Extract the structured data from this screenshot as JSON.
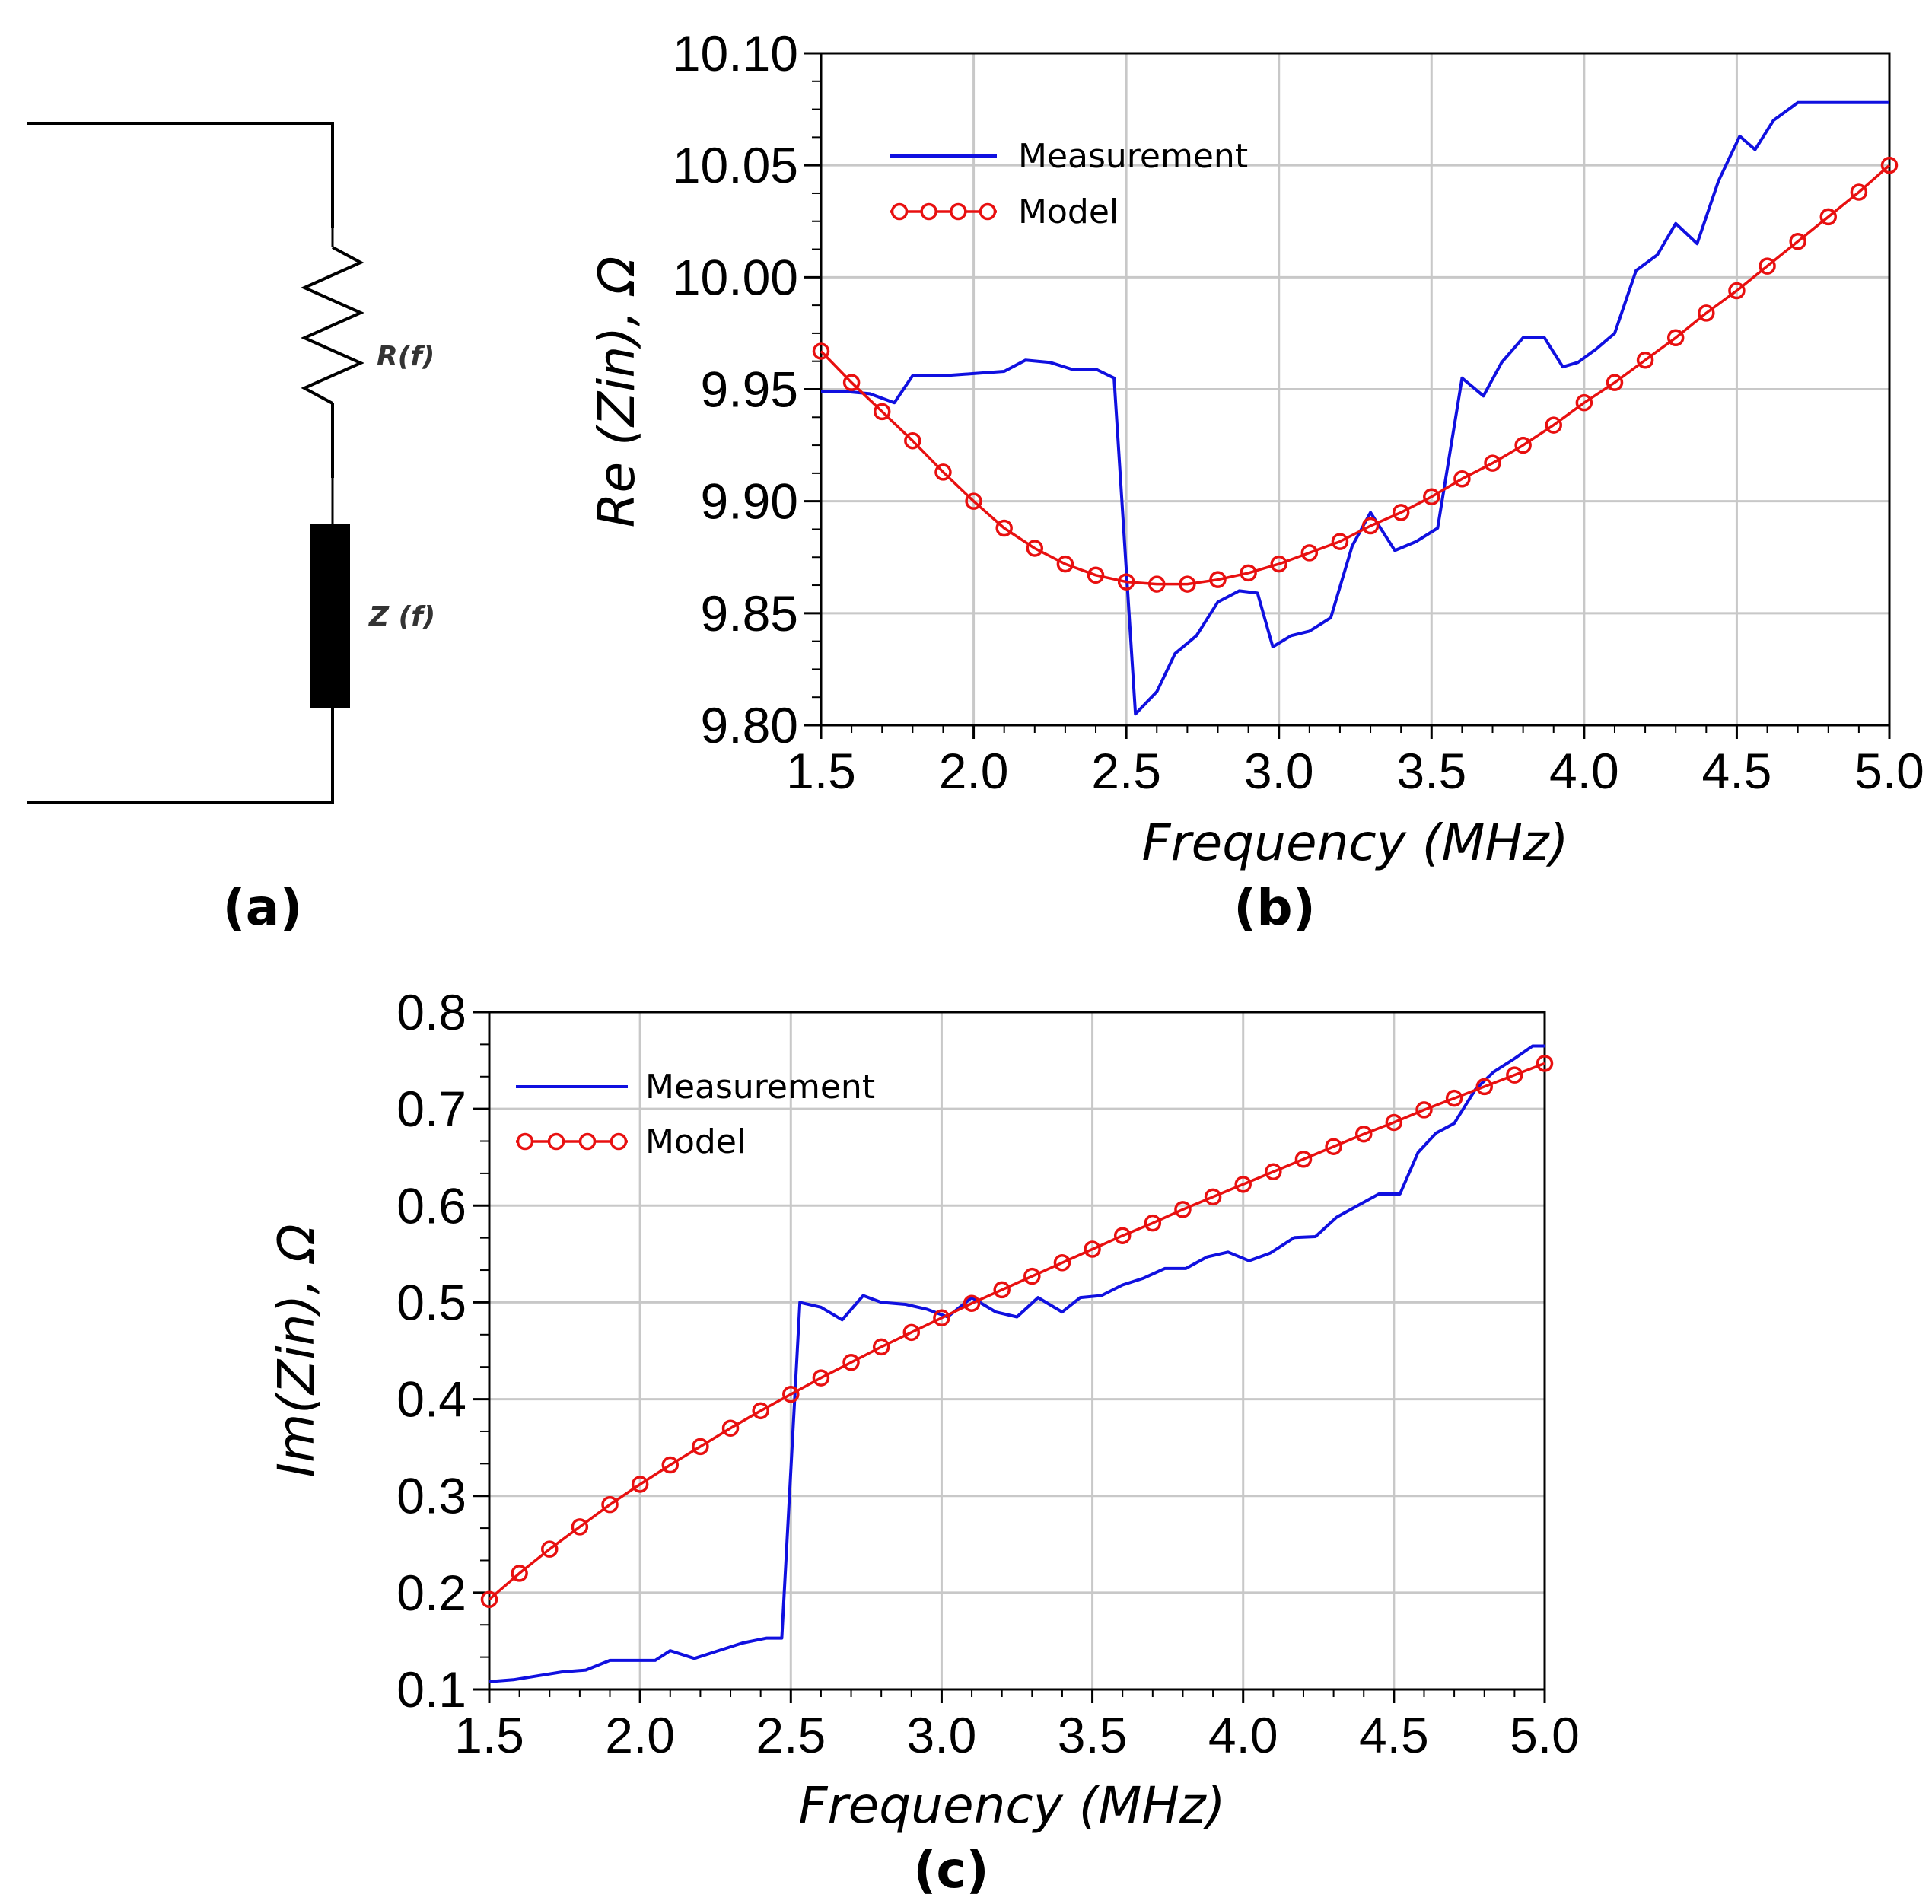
{
  "circuit": {
    "panel_label": "(a)",
    "resistor_label": "R(f)",
    "impedance_label": "Z (f)"
  },
  "colors": {
    "measurement": "#1010e0",
    "model": "#e81010"
  },
  "chart_data": [
    {
      "type": "line",
      "panel_label": "(b)",
      "xlabel": "Frequency (MHz)",
      "ylabel": "Re (Zin), Ω",
      "xlim": [
        1.5,
        5.0
      ],
      "ylim": [
        9.8,
        10.1
      ],
      "xticks": [
        "1.5",
        "2.0",
        "2.5",
        "3.0",
        "3.5",
        "4.0",
        "4.5",
        "5.0"
      ],
      "yticks": [
        "9.80",
        "9.85",
        "9.90",
        "9.95",
        "10.00",
        "10.05",
        "10.10"
      ],
      "grid": true,
      "legend_position": "top-left",
      "series": [
        {
          "name": "Measurement",
          "style": "line",
          "x": [
            1.5,
            1.58,
            1.66,
            1.74,
            1.8,
            1.9,
            2.0,
            2.1,
            2.17,
            2.25,
            2.32,
            2.4,
            2.46,
            2.53,
            2.6,
            2.66,
            2.73,
            2.8,
            2.87,
            2.93,
            2.98,
            3.04,
            3.1,
            3.17,
            3.24,
            3.3,
            3.38,
            3.45,
            3.52,
            3.6,
            3.67,
            3.73,
            3.8,
            3.87,
            3.93,
            3.98,
            4.04,
            4.1,
            4.17,
            4.24,
            4.3,
            4.37,
            4.44,
            4.51,
            4.56,
            4.62,
            4.7,
            4.77,
            4.85,
            4.93,
            5.0
          ],
          "y": [
            9.949,
            9.949,
            9.948,
            9.944,
            9.956,
            9.956,
            9.957,
            9.958,
            9.963,
            9.962,
            9.959,
            9.959,
            9.955,
            9.805,
            9.815,
            9.832,
            9.84,
            9.855,
            9.86,
            9.859,
            9.835,
            9.84,
            9.842,
            9.848,
            9.88,
            9.895,
            9.878,
            9.882,
            9.888,
            9.955,
            9.947,
            9.962,
            9.973,
            9.973,
            9.96,
            9.962,
            9.968,
            9.975,
            10.003,
            10.01,
            10.024,
            10.015,
            10.043,
            10.063,
            10.057,
            10.07,
            10.078,
            10.078,
            10.078,
            10.078,
            10.078
          ]
        },
        {
          "name": "Model",
          "style": "line-circle",
          "x": [
            1.5,
            1.6,
            1.7,
            1.8,
            1.9,
            2.0,
            2.1,
            2.2,
            2.3,
            2.4,
            2.5,
            2.6,
            2.7,
            2.8,
            2.9,
            3.0,
            3.1,
            3.2,
            3.3,
            3.4,
            3.5,
            3.6,
            3.7,
            3.8,
            3.9,
            4.0,
            4.1,
            4.2,
            4.3,
            4.4,
            4.5,
            4.6,
            4.7,
            4.8,
            4.9,
            5.0
          ],
          "y": [
            9.967,
            9.953,
            9.94,
            9.927,
            9.913,
            9.9,
            9.888,
            9.879,
            9.872,
            9.867,
            9.864,
            9.863,
            9.863,
            9.865,
            9.868,
            9.872,
            9.877,
            9.882,
            9.889,
            9.895,
            9.902,
            9.91,
            9.917,
            9.925,
            9.934,
            9.944,
            9.953,
            9.963,
            9.973,
            9.984,
            9.994,
            10.005,
            10.016,
            10.027,
            10.038,
            10.05
          ]
        }
      ]
    },
    {
      "type": "line",
      "panel_label": "(c)",
      "xlabel": "Frequency (MHz)",
      "ylabel": "Im(Zin), Ω",
      "xlim": [
        1.5,
        5.0
      ],
      "ylim": [
        0.1,
        0.8
      ],
      "xticks": [
        "1.5",
        "2.0",
        "2.5",
        "3.0",
        "3.5",
        "4.0",
        "4.5",
        "5.0"
      ],
      "yticks": [
        "0.1",
        "0.2",
        "0.3",
        "0.4",
        "0.5",
        "0.6",
        "0.7",
        "0.8"
      ],
      "grid": true,
      "legend_position": "top-left",
      "series": [
        {
          "name": "Measurement",
          "style": "line",
          "x": [
            1.5,
            1.58,
            1.66,
            1.74,
            1.82,
            1.9,
            2.0,
            2.05,
            2.1,
            2.18,
            2.26,
            2.34,
            2.42,
            2.47,
            2.53,
            2.6,
            2.67,
            2.74,
            2.8,
            2.88,
            2.95,
            3.02,
            3.1,
            3.18,
            3.25,
            3.32,
            3.4,
            3.46,
            3.53,
            3.6,
            3.67,
            3.74,
            3.81,
            3.88,
            3.95,
            4.02,
            4.09,
            4.17,
            4.24,
            4.31,
            4.38,
            4.45,
            4.52,
            4.58,
            4.64,
            4.7,
            4.77,
            4.83,
            4.9,
            4.96,
            5.0
          ],
          "y": [
            0.108,
            0.11,
            0.114,
            0.118,
            0.12,
            0.13,
            0.13,
            0.13,
            0.14,
            0.132,
            0.14,
            0.148,
            0.153,
            0.153,
            0.5,
            0.495,
            0.482,
            0.507,
            0.5,
            0.498,
            0.493,
            0.485,
            0.505,
            0.49,
            0.485,
            0.505,
            0.49,
            0.505,
            0.507,
            0.518,
            0.525,
            0.535,
            0.535,
            0.547,
            0.552,
            0.543,
            0.551,
            0.567,
            0.568,
            0.588,
            0.6,
            0.612,
            0.612,
            0.655,
            0.675,
            0.685,
            0.72,
            0.738,
            0.752,
            0.765,
            0.765
          ]
        },
        {
          "name": "Model",
          "style": "line-circle",
          "x": [
            1.5,
            1.6,
            1.7,
            1.8,
            1.9,
            2.0,
            2.1,
            2.2,
            2.3,
            2.4,
            2.5,
            2.6,
            2.7,
            2.8,
            2.9,
            3.0,
            3.1,
            3.2,
            3.3,
            3.4,
            3.5,
            3.6,
            3.7,
            3.8,
            3.9,
            4.0,
            4.1,
            4.2,
            4.3,
            4.4,
            4.5,
            4.6,
            4.7,
            4.8,
            4.9,
            5.0
          ],
          "y": [
            0.193,
            0.22,
            0.245,
            0.268,
            0.291,
            0.312,
            0.332,
            0.351,
            0.37,
            0.388,
            0.405,
            0.422,
            0.438,
            0.454,
            0.469,
            0.484,
            0.499,
            0.513,
            0.527,
            0.541,
            0.555,
            0.569,
            0.582,
            0.596,
            0.609,
            0.622,
            0.635,
            0.648,
            0.661,
            0.674,
            0.686,
            0.699,
            0.711,
            0.723,
            0.735,
            0.747
          ]
        }
      ]
    }
  ]
}
